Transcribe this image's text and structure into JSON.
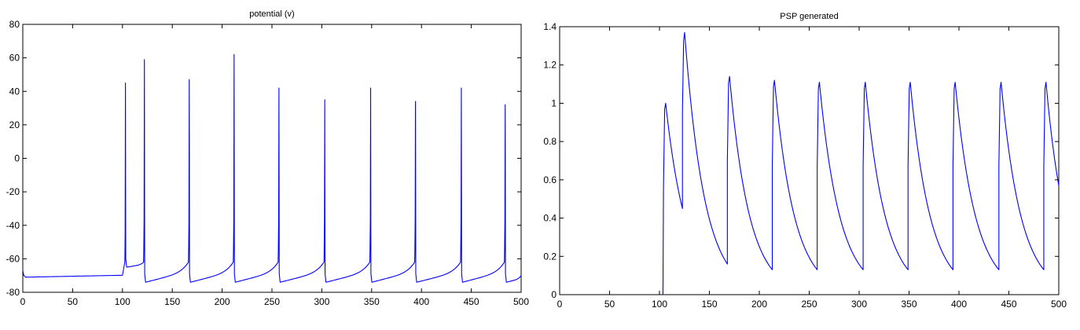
{
  "chart_data": [
    {
      "type": "line",
      "title": "potential (v)",
      "xlabel": "",
      "ylabel": "",
      "xlim": [
        0,
        500
      ],
      "ylim": [
        -80,
        80
      ],
      "xticks": [
        0,
        50,
        100,
        150,
        200,
        250,
        300,
        350,
        400,
        450,
        500
      ],
      "yticks": [
        -80,
        -60,
        -40,
        -20,
        0,
        20,
        40,
        60,
        80
      ],
      "grid": false,
      "color": "#0000ff",
      "rest_potential": -70,
      "spikes": [
        {
          "t": 103,
          "peak": 45,
          "after": -65
        },
        {
          "t": 122,
          "peak": 59,
          "after": -74
        },
        {
          "t": 167,
          "peak": 47,
          "after": -74
        },
        {
          "t": 212,
          "peak": 62,
          "after": -74
        },
        {
          "t": 257,
          "peak": 42,
          "after": -74
        },
        {
          "t": 303,
          "peak": 35,
          "after": -74
        },
        {
          "t": 349,
          "peak": 42,
          "after": -74
        },
        {
          "t": 394,
          "peak": 34,
          "after": -74
        },
        {
          "t": 440,
          "peak": 42,
          "after": -74
        },
        {
          "t": 484,
          "peak": 32,
          "after": -74
        }
      ]
    },
    {
      "type": "line",
      "title": "PSP generated",
      "xlabel": "",
      "ylabel": "",
      "xlim": [
        0,
        500
      ],
      "ylim": [
        0,
        1.4
      ],
      "xticks": [
        0,
        50,
        100,
        150,
        200,
        250,
        300,
        350,
        400,
        450,
        500
      ],
      "yticks": [
        0,
        0.2,
        0.4,
        0.6,
        0.8,
        1,
        1.2,
        1.4
      ],
      "grid": false,
      "color": "#0000ff",
      "pulses": [
        {
          "t": 104,
          "peak": 1.0,
          "end": 0.45
        },
        {
          "t": 123,
          "peak": 1.37,
          "end": 0.16
        },
        {
          "t": 168,
          "peak": 1.14,
          "end": 0.13
        },
        {
          "t": 213,
          "peak": 1.12,
          "end": 0.13
        },
        {
          "t": 258,
          "peak": 1.11,
          "end": 0.13
        },
        {
          "t": 304,
          "peak": 1.11,
          "end": 0.13
        },
        {
          "t": 349,
          "peak": 1.11,
          "end": 0.13
        },
        {
          "t": 394,
          "peak": 1.11,
          "end": 0.13
        },
        {
          "t": 440,
          "peak": 1.11,
          "end": 0.13
        },
        {
          "t": 485,
          "peak": 1.11,
          "end": 0.57
        }
      ]
    }
  ]
}
